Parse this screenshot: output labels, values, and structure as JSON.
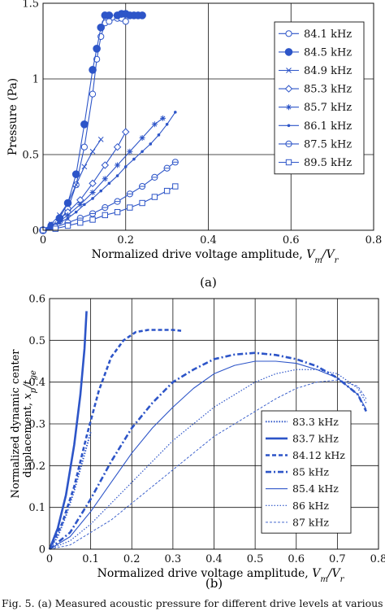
{
  "figure": {
    "caption": "Fig. 5. (a) Measured acoustic pressure for different drive levels at various"
  },
  "colors": {
    "series": "#2d55c8",
    "axis": "#111111",
    "grid": "#111111"
  },
  "chart_data": [
    {
      "type": "line",
      "panel_label": "(a)",
      "xlabel": "Normalized drive voltage amplitude,",
      "xlabel_math": "V_m / V_r",
      "ylabel": "Pressure (Pa)",
      "xlim": [
        0,
        0.8
      ],
      "ylim": [
        0,
        1.5
      ],
      "xticks": [
        "0",
        "0.2",
        "0.4",
        "0.6",
        "0.8"
      ],
      "yticks": [
        "0",
        "0.5",
        "1",
        "1.5"
      ],
      "grid": true,
      "legend_position": "top-right",
      "series": [
        {
          "name": "84.1 kHz",
          "marker": "circle-open",
          "style": "solid",
          "x": [
            0.0,
            0.02,
            0.04,
            0.06,
            0.08,
            0.1,
            0.12,
            0.13,
            0.14,
            0.15,
            0.16,
            0.18,
            0.19,
            0.2
          ],
          "y": [
            0.0,
            0.02,
            0.06,
            0.14,
            0.3,
            0.55,
            0.9,
            1.13,
            1.28,
            1.37,
            1.38,
            1.4,
            1.4,
            1.38
          ]
        },
        {
          "name": "84.5 kHz",
          "marker": "circle-filled",
          "style": "solid",
          "x": [
            0.0,
            0.02,
            0.04,
            0.06,
            0.08,
            0.1,
            0.12,
            0.13,
            0.14,
            0.15,
            0.16,
            0.18,
            0.19,
            0.2,
            0.21,
            0.22,
            0.23,
            0.24
          ],
          "y": [
            0.0,
            0.03,
            0.08,
            0.18,
            0.37,
            0.7,
            1.06,
            1.2,
            1.34,
            1.42,
            1.42,
            1.42,
            1.43,
            1.43,
            1.42,
            1.42,
            1.42,
            1.42
          ]
        },
        {
          "name": "84.9 kHz",
          "marker": "x",
          "style": "solid",
          "x": [
            0.0,
            0.02,
            0.04,
            0.06,
            0.08,
            0.1,
            0.12,
            0.14
          ],
          "y": [
            0.0,
            0.04,
            0.1,
            0.18,
            0.3,
            0.42,
            0.52,
            0.6
          ]
        },
        {
          "name": "85.3 kHz",
          "marker": "diamond",
          "style": "solid",
          "x": [
            0.0,
            0.03,
            0.06,
            0.09,
            0.12,
            0.15,
            0.18,
            0.2
          ],
          "y": [
            0.0,
            0.05,
            0.12,
            0.2,
            0.31,
            0.43,
            0.55,
            0.65
          ]
        },
        {
          "name": "85.7 kHz",
          "marker": "asterisk",
          "style": "solid",
          "x": [
            0.0,
            0.03,
            0.06,
            0.09,
            0.12,
            0.15,
            0.18,
            0.21,
            0.24,
            0.27,
            0.29
          ],
          "y": [
            0.0,
            0.04,
            0.1,
            0.17,
            0.25,
            0.34,
            0.43,
            0.52,
            0.61,
            0.7,
            0.74
          ]
        },
        {
          "name": "86.1 kHz",
          "marker": "dot",
          "style": "solid",
          "x": [
            0.0,
            0.02,
            0.04,
            0.06,
            0.08,
            0.1,
            0.12,
            0.14,
            0.16,
            0.18,
            0.2,
            0.22,
            0.24,
            0.26,
            0.28,
            0.3,
            0.32
          ],
          "y": [
            0.0,
            0.02,
            0.05,
            0.08,
            0.12,
            0.17,
            0.21,
            0.26,
            0.31,
            0.36,
            0.42,
            0.47,
            0.52,
            0.57,
            0.63,
            0.7,
            0.78
          ]
        },
        {
          "name": "87.5 kHz",
          "marker": "circle-line",
          "style": "solid",
          "x": [
            0.0,
            0.03,
            0.06,
            0.09,
            0.12,
            0.15,
            0.18,
            0.21,
            0.24,
            0.27,
            0.3,
            0.32
          ],
          "y": [
            0.0,
            0.02,
            0.05,
            0.08,
            0.11,
            0.15,
            0.19,
            0.24,
            0.29,
            0.35,
            0.41,
            0.45
          ]
        },
        {
          "name": "89.5 kHz",
          "marker": "square",
          "style": "solid",
          "x": [
            0.0,
            0.03,
            0.06,
            0.09,
            0.12,
            0.15,
            0.18,
            0.21,
            0.24,
            0.27,
            0.3,
            0.32
          ],
          "y": [
            0.0,
            0.01,
            0.03,
            0.05,
            0.07,
            0.1,
            0.12,
            0.15,
            0.18,
            0.22,
            0.26,
            0.29
          ]
        }
      ]
    },
    {
      "type": "line",
      "panel_label": "(b)",
      "xlabel": "Normalized drive voltage amplitude,",
      "xlabel_math": "V_m / V_r",
      "ylabel": "Normalized dynamic center",
      "ylabel2": "displacement,",
      "ylabel2_math": "x_p / t_ge",
      "xlim": [
        0,
        0.8
      ],
      "ylim": [
        0,
        0.6
      ],
      "xticks": [
        "0",
        "0.1",
        "0.2",
        "0.3",
        "0.4",
        "0.5",
        "0.6",
        "0.7",
        "0.8"
      ],
      "yticks": [
        "0",
        "0.1",
        "0.2",
        "0.3",
        "0.4",
        "0.5",
        "0.6"
      ],
      "grid": true,
      "legend_position": "bottom-right",
      "series": [
        {
          "name": "83.3 kHz",
          "style": "dotted-thick",
          "x": [
            0.0,
            0.02,
            0.04,
            0.06,
            0.08,
            0.1
          ],
          "y": [
            0.0,
            0.03,
            0.08,
            0.14,
            0.21,
            0.28
          ]
        },
        {
          "name": "83.7 kHz",
          "style": "solid-thick",
          "x": [
            0.0,
            0.02,
            0.04,
            0.06,
            0.075,
            0.085,
            0.09
          ],
          "y": [
            0.0,
            0.05,
            0.13,
            0.25,
            0.37,
            0.48,
            0.57
          ]
        },
        {
          "name": "84.12 kHz",
          "style": "dashed-thick",
          "x": [
            0.0,
            0.03,
            0.06,
            0.09,
            0.12,
            0.15,
            0.18,
            0.21,
            0.24,
            0.27,
            0.3,
            0.32
          ],
          "y": [
            0.0,
            0.06,
            0.15,
            0.27,
            0.38,
            0.46,
            0.5,
            0.52,
            0.525,
            0.525,
            0.525,
            0.523
          ]
        },
        {
          "name": "85 kHz",
          "style": "dashdot-thick",
          "x": [
            0.0,
            0.05,
            0.1,
            0.15,
            0.2,
            0.25,
            0.3,
            0.35,
            0.4,
            0.45,
            0.5,
            0.55,
            0.6,
            0.65,
            0.7,
            0.75,
            0.77
          ],
          "y": [
            0.0,
            0.04,
            0.12,
            0.21,
            0.29,
            0.35,
            0.4,
            0.43,
            0.455,
            0.466,
            0.47,
            0.465,
            0.455,
            0.438,
            0.41,
            0.37,
            0.33
          ]
        },
        {
          "name": "85.4 kHz",
          "style": "solid",
          "x": [
            0.0,
            0.05,
            0.1,
            0.15,
            0.2,
            0.25,
            0.3,
            0.35,
            0.4,
            0.45,
            0.5,
            0.55,
            0.6,
            0.65,
            0.7,
            0.75,
            0.77
          ],
          "y": [
            0.0,
            0.03,
            0.09,
            0.16,
            0.23,
            0.29,
            0.34,
            0.385,
            0.42,
            0.44,
            0.45,
            0.45,
            0.445,
            0.43,
            0.41,
            0.37,
            0.335
          ]
        },
        {
          "name": "86 kHz",
          "style": "dotted",
          "x": [
            0.0,
            0.05,
            0.1,
            0.15,
            0.2,
            0.25,
            0.3,
            0.35,
            0.4,
            0.45,
            0.5,
            0.55,
            0.6,
            0.65,
            0.7,
            0.75,
            0.77
          ],
          "y": [
            0.0,
            0.02,
            0.06,
            0.11,
            0.16,
            0.21,
            0.26,
            0.3,
            0.34,
            0.37,
            0.4,
            0.42,
            0.43,
            0.43,
            0.42,
            0.385,
            0.35
          ]
        },
        {
          "name": "87 kHz",
          "style": "dashed-thin",
          "x": [
            0.0,
            0.05,
            0.1,
            0.15,
            0.2,
            0.25,
            0.3,
            0.35,
            0.4,
            0.45,
            0.5,
            0.55,
            0.6,
            0.65,
            0.7,
            0.75,
            0.77
          ],
          "y": [
            0.0,
            0.01,
            0.04,
            0.07,
            0.11,
            0.15,
            0.19,
            0.23,
            0.27,
            0.3,
            0.33,
            0.36,
            0.385,
            0.4,
            0.405,
            0.39,
            0.36
          ]
        }
      ]
    }
  ]
}
